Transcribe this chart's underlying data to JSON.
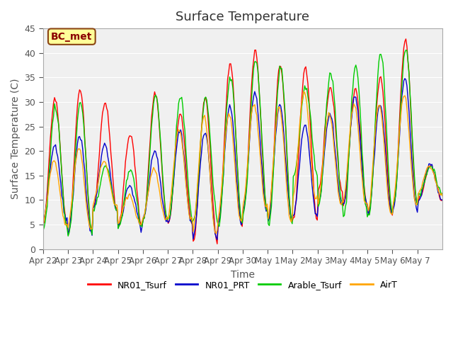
{
  "title": "Surface Temperature",
  "ylabel": "Surface Temperature (C)",
  "xlabel": "Time",
  "ylim": [
    0,
    45
  ],
  "plot_bg": "#f0f0f0",
  "annotation_text": "BC_met",
  "annotation_color": "#8B0000",
  "annotation_bg": "#FFFF99",
  "legend_labels": [
    "NR01_Tsurf",
    "NR01_PRT",
    "Arable_Tsurf",
    "AirT"
  ],
  "line_colors": [
    "#ff0000",
    "#0000cc",
    "#00cc00",
    "#ffa500"
  ],
  "tick_labels": [
    "Apr 22",
    "Apr 23",
    "Apr 24",
    "Apr 25",
    "Apr 26",
    "Apr 27",
    "Apr 28",
    "Apr 29",
    "Apr 30",
    "May 1",
    "May 2",
    "May 3",
    "May 4",
    "May 5",
    "May 6",
    "May 7"
  ],
  "n_days": 16,
  "samples_per_day": 24
}
